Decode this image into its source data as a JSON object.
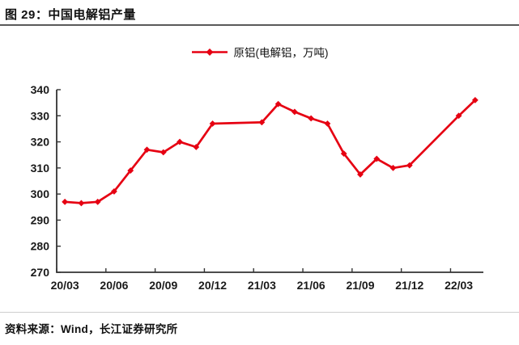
{
  "header": {
    "title": "图 29：中国电解铝产量"
  },
  "legend": {
    "label": "原铝(电解铝，万吨)"
  },
  "footer": {
    "source": "资料来源：Wind，长江证券研究所"
  },
  "colors": {
    "series": "#e60012",
    "axis": "#333333",
    "tick_label": "#1a1a1a",
    "title_rule": "#5a5a5a",
    "footer_rule": "#cfcfcf"
  },
  "chart_data": {
    "type": "line",
    "title": "中国电解铝产量",
    "legend_position": "top-center",
    "grid": false,
    "marker": "diamond",
    "categories": [
      "20/03",
      "20/04",
      "20/05",
      "20/06",
      "20/07",
      "20/08",
      "20/09",
      "20/10",
      "20/11",
      "20/12",
      "21/01",
      "21/02",
      "21/03",
      "21/04",
      "21/05",
      "21/06",
      "21/07",
      "21/08",
      "21/09",
      "21/10",
      "21/11",
      "21/12",
      "22/01",
      "22/02",
      "22/03",
      "22/04"
    ],
    "xtick_labels": [
      "20/03",
      "20/06",
      "20/09",
      "20/12",
      "21/03",
      "21/06",
      "21/09",
      "21/12",
      "22/03"
    ],
    "xtick_every": 3,
    "yticks": [
      270,
      280,
      290,
      300,
      310,
      320,
      330,
      340
    ],
    "ylim": [
      270,
      340
    ],
    "ylabel": "",
    "xlabel": "",
    "series": [
      {
        "name": "原铝(电解铝，万吨)",
        "values": [
          297,
          296.5,
          297,
          301,
          309,
          317,
          316,
          320,
          318,
          327,
          null,
          null,
          327.5,
          334.5,
          331.5,
          329,
          327,
          315.5,
          307.5,
          313.5,
          310,
          311,
          null,
          null,
          330,
          336
        ]
      }
    ],
    "missing_data_note": "values shown as null have no marker; line connects straight through"
  }
}
